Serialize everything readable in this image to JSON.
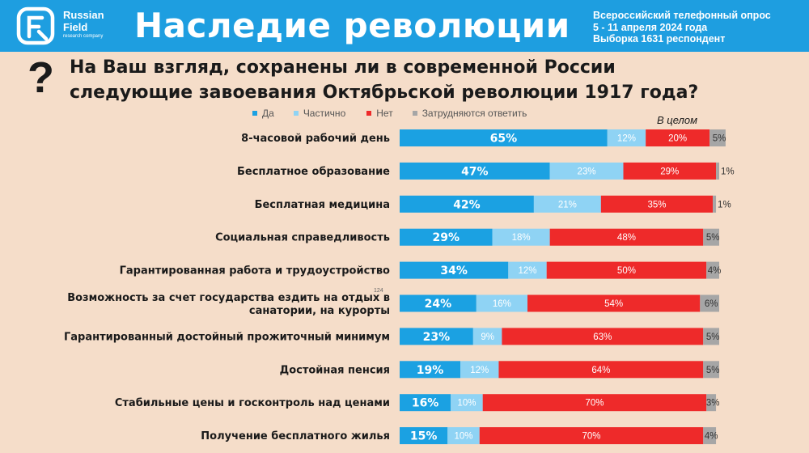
{
  "header": {
    "logo_line1": "Russian",
    "logo_line2": "Field",
    "logo_line3": "research company",
    "title": "Наследие революции",
    "survey_line1": "Всероссийский телефонный опрос",
    "survey_line2": "5 - 11 апреля 2024 года",
    "survey_line3": "Выборка 1631 респондент"
  },
  "question": {
    "line1": "На Ваш взгляд, сохранены ли в современной России",
    "line2": "следующие завоевания Октябрьской революции 1917 года?"
  },
  "overall_label": "В целом",
  "page_number": "124",
  "colors": {
    "header_bg": "#1e9ee0",
    "page_bg": "#f5ddc9",
    "yes": "#1ba1e2",
    "partial": "#8fd3f4",
    "no": "#ee2a2a",
    "dk": "#a6a6a6"
  },
  "chart_data": {
    "type": "bar",
    "orientation": "horizontal",
    "stacked": true,
    "unit": "%",
    "legend_position": "top",
    "series": [
      {
        "name": "Да",
        "color": "#1ba1e2",
        "values": [
          65,
          47,
          42,
          29,
          34,
          24,
          23,
          19,
          16,
          15
        ]
      },
      {
        "name": "Частично",
        "color": "#8fd3f4",
        "values": [
          12,
          23,
          21,
          18,
          12,
          16,
          9,
          12,
          10,
          10
        ]
      },
      {
        "name": "Нет",
        "color": "#ee2a2a",
        "values": [
          20,
          29,
          35,
          48,
          50,
          54,
          63,
          64,
          70,
          70
        ]
      },
      {
        "name": "Затрудняются ответить",
        "color": "#a6a6a6",
        "values": [
          5,
          1,
          1,
          5,
          4,
          6,
          5,
          5,
          3,
          4
        ]
      }
    ],
    "categories": [
      [
        "8-часовой рабочий день"
      ],
      [
        "Бесплатное образование"
      ],
      [
        "Бесплатная медицина"
      ],
      [
        "Социальная справедливость"
      ],
      [
        "Гарантированная работа и трудоустройство"
      ],
      [
        "Возможность за счет государства ездить на отдых в",
        "санатории, на курорты"
      ],
      [
        "Гарантированный достойный прожиточный минимум"
      ],
      [
        "Достойная пенсия"
      ],
      [
        "Стабильные цены и госконтроль над ценами"
      ],
      [
        "Получение бесплатного жилья"
      ]
    ]
  }
}
